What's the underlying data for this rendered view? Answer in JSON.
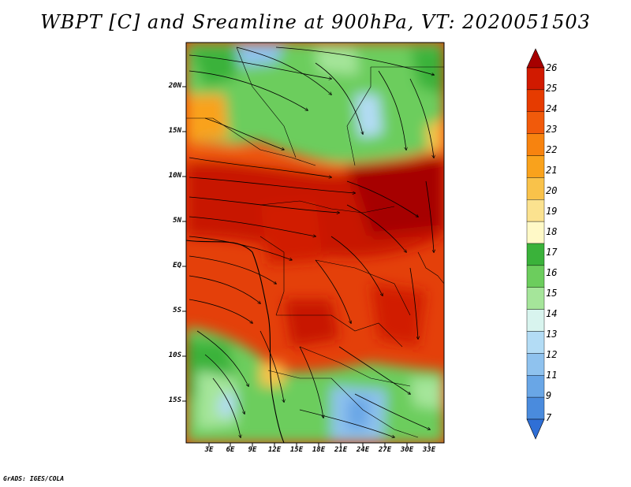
{
  "title": "WBPT [C] and Sreamline at 900hPa, VT: 2020051503",
  "credit": "GrADS: IGES/COLA",
  "map": {
    "lat_labels": [
      "20N",
      "15N",
      "10N",
      "5N",
      "EQ",
      "5S",
      "10S",
      "15S"
    ],
    "lon_labels": [
      "3E",
      "6E",
      "9E",
      "12E",
      "15E",
      "18E",
      "21E",
      "24E",
      "27E",
      "30E",
      "33E"
    ],
    "lat_values": [
      20,
      15,
      10,
      5,
      0,
      -5,
      -10,
      -15
    ],
    "lon_values": [
      3,
      6,
      9,
      12,
      15,
      18,
      21,
      24,
      27,
      30,
      33
    ]
  },
  "colorbar": {
    "labels": [
      "26",
      "25",
      "24",
      "23",
      "22",
      "21",
      "20",
      "19",
      "18",
      "17",
      "16",
      "15",
      "14",
      "13",
      "12",
      "11",
      "9",
      "7"
    ],
    "colors": [
      "#a60000",
      "#d11a00",
      "#e63b00",
      "#f15a0b",
      "#f7830f",
      "#f9a21c",
      "#f9c24a",
      "#fbe28f",
      "#fff9c7",
      "#3ab23a",
      "#6ccd5d",
      "#a5e59a",
      "#d8f4ee",
      "#b3dcf5",
      "#8fc2ee",
      "#69a6e6",
      "#4a8bdd",
      "#2f6fd6"
    ]
  },
  "field": {
    "variable": "wet-bulb potential temperature",
    "unit": "C",
    "level": "900hPa",
    "valid_time": "2020051503"
  }
}
